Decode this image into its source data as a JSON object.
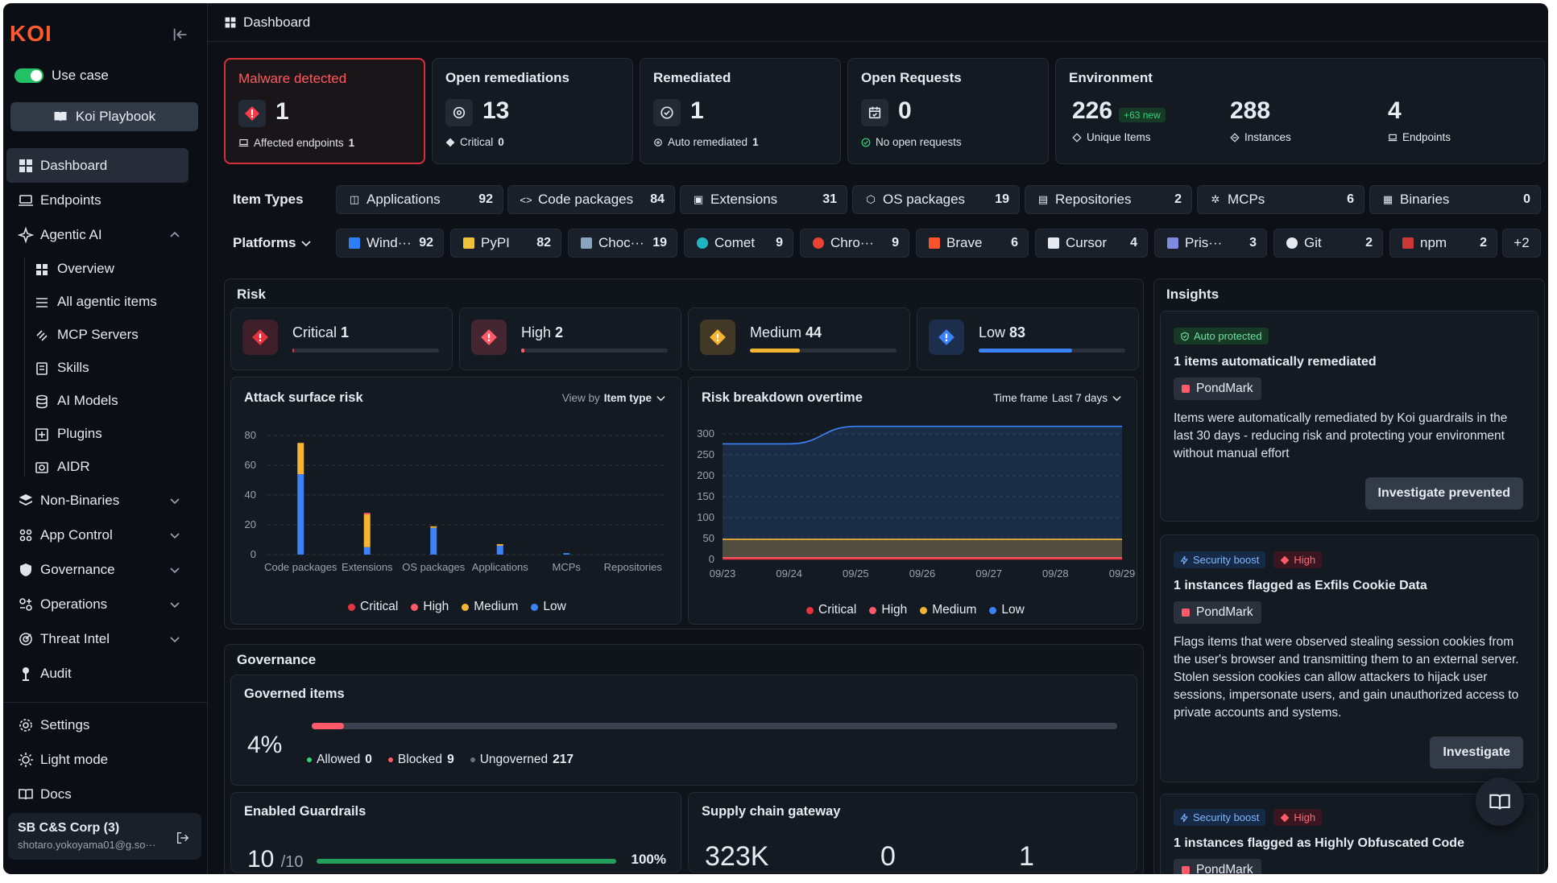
{
  "app": {
    "logo": "KOI",
    "usecase": "Use case",
    "playbook": "Koi Playbook"
  },
  "nav": {
    "dashboard": "Dashboard",
    "endpoints": "Endpoints",
    "agentic": "Agentic AI",
    "overview": "Overview",
    "all_agentic": "All agentic items",
    "mcp": "MCP Servers",
    "skills": "Skills",
    "ai_models": "AI Models",
    "plugins": "Plugins",
    "aidr": "AIDR",
    "non_binaries": "Non-Binaries",
    "app_control": "App Control",
    "governance": "Governance",
    "operations": "Operations",
    "threat_intel": "Threat Intel",
    "audit": "Audit",
    "settings": "Settings",
    "light_mode": "Light mode",
    "docs": "Docs"
  },
  "org": {
    "name": "SB C&S Corp (3)",
    "email": "shotaro.yokoyama01@g.so···"
  },
  "header": {
    "title": "Dashboard"
  },
  "stats": {
    "malware": {
      "title": "Malware detected",
      "value": "1",
      "sub": "Affected endpoints",
      "sub_val": "1"
    },
    "open_rem": {
      "title": "Open remediations",
      "value": "13",
      "sub": "Critical",
      "sub_val": "0"
    },
    "remediated": {
      "title": "Remediated",
      "value": "1",
      "sub": "Auto remediated",
      "sub_val": "1"
    },
    "open_req": {
      "title": "Open Requests",
      "value": "0",
      "sub": "No open requests"
    },
    "env": {
      "title": "Environment",
      "unique": "226",
      "new": "+63 new",
      "unique_label": "Unique Items",
      "instances": "288",
      "instances_label": "Instances",
      "endpoints": "4",
      "endpoints_label": "Endpoints"
    }
  },
  "item_types": {
    "label": "Item Types",
    "items": [
      {
        "name": "Applications",
        "count": "92"
      },
      {
        "name": "Code packages",
        "count": "84"
      },
      {
        "name": "Extensions",
        "count": "31"
      },
      {
        "name": "OS packages",
        "count": "19"
      },
      {
        "name": "Repositories",
        "count": "2"
      },
      {
        "name": "MCPs",
        "count": "6"
      },
      {
        "name": "Binaries",
        "count": "0"
      }
    ]
  },
  "platforms": {
    "label": "Platforms",
    "more": "+2",
    "items": [
      {
        "name": "Wind···",
        "count": "92"
      },
      {
        "name": "PyPI",
        "count": "82"
      },
      {
        "name": "Choc···",
        "count": "19"
      },
      {
        "name": "Comet",
        "count": "9"
      },
      {
        "name": "Chro···",
        "count": "9"
      },
      {
        "name": "Brave",
        "count": "6"
      },
      {
        "name": "Cursor",
        "count": "4"
      },
      {
        "name": "Pris···",
        "count": "3"
      },
      {
        "name": "Git",
        "count": "2"
      },
      {
        "name": "npm",
        "count": "2"
      }
    ]
  },
  "risk": {
    "title": "Risk",
    "levels": [
      {
        "name": "Critical",
        "count": "1",
        "color": "#e8323f",
        "fill": 0.012
      },
      {
        "name": "High",
        "count": "2",
        "color": "#ff5a6a",
        "fill": 0.024
      },
      {
        "name": "Medium",
        "count": "44",
        "color": "#f5b431",
        "fill": 0.34
      },
      {
        "name": "Low",
        "count": "83",
        "color": "#3b82f6",
        "fill": 0.64
      }
    ]
  },
  "legend": {
    "critical": "Critical",
    "high": "High",
    "medium": "Medium",
    "low": "Low"
  },
  "attack": {
    "title": "Attack surface risk",
    "view_by": "View by",
    "view_val": "Item type"
  },
  "breakdown": {
    "title": "Risk breakdown overtime",
    "timeframe": "Time frame",
    "tf_val": "Last 7 days"
  },
  "chart_data": [
    {
      "type": "bar",
      "title": "Attack surface risk",
      "categories": [
        "Code packages",
        "Extensions",
        "OS packages",
        "Applications",
        "MCPs",
        "Repositories"
      ],
      "ylim": [
        0,
        80
      ],
      "yticks": [
        0,
        20,
        40,
        60,
        80
      ],
      "series": [
        {
          "name": "Critical",
          "values": [
            0,
            0,
            0,
            0,
            0,
            0
          ]
        },
        {
          "name": "High",
          "values": [
            0,
            1,
            0,
            0,
            0,
            0
          ]
        },
        {
          "name": "Medium",
          "values": [
            21,
            22,
            1,
            1,
            0,
            0
          ]
        },
        {
          "name": "Low",
          "values": [
            54,
            5,
            18,
            6,
            1,
            0
          ]
        }
      ]
    },
    {
      "type": "area",
      "title": "Risk breakdown overtime",
      "x": [
        "09/23",
        "09/24",
        "09/25",
        "09/26",
        "09/27",
        "09/28",
        "09/29"
      ],
      "ylim": [
        0,
        300
      ],
      "yticks": [
        0,
        50,
        100,
        150,
        200,
        250,
        300
      ],
      "series": [
        {
          "name": "Critical",
          "values": [
            1,
            1,
            1,
            1,
            1,
            1,
            1
          ]
        },
        {
          "name": "High",
          "values": [
            3,
            3,
            3,
            3,
            3,
            3,
            3
          ]
        },
        {
          "name": "Medium",
          "values": [
            44,
            44,
            44,
            44,
            44,
            44,
            44
          ]
        },
        {
          "name": "Low",
          "values": [
            228,
            228,
            270,
            270,
            270,
            270,
            270
          ]
        }
      ]
    }
  ],
  "governance": {
    "title": "Governance",
    "governed": "Governed items",
    "pct": "4%",
    "allowed": "Allowed",
    "allowed_v": "0",
    "blocked": "Blocked",
    "blocked_v": "9",
    "ungoverned": "Ungoverned",
    "ungoverned_v": "217",
    "blocked_frac": 0.04,
    "guardrails": "Enabled Guardrails",
    "gr_val": "10",
    "gr_total": "/10",
    "gr_pct": "100%",
    "gr_frac": 1.0,
    "supply": "Supply chain gateway",
    "sc1": "323K",
    "sc2": "0",
    "sc3": "1"
  },
  "insights": {
    "title": "Insights",
    "cards": [
      {
        "badge": "Auto protected",
        "title": "1 items automatically remediated",
        "tag": "PondMark",
        "text": "Items were automatically remediated by Koi guardrails in the last 30 days - reducing risk and protecting your environment without manual effort",
        "btn": "Investigate prevented"
      },
      {
        "badge": "Security boost",
        "sev": "High",
        "title": "1 instances flagged as Exfils Cookie Data",
        "tag": "PondMark",
        "text": "Flags items that were observed stealing session cookies from the user's browser and transmitting them to an external server. Stolen session cookies can allow attackers to hijack user sessions, impersonate users, and gain unauthorized access to private accounts and systems.",
        "btn": "Investigate"
      },
      {
        "badge": "Security boost",
        "sev": "High",
        "title": "1 instances flagged as Highly Obfuscated Code",
        "tag": "PondMark"
      }
    ]
  }
}
